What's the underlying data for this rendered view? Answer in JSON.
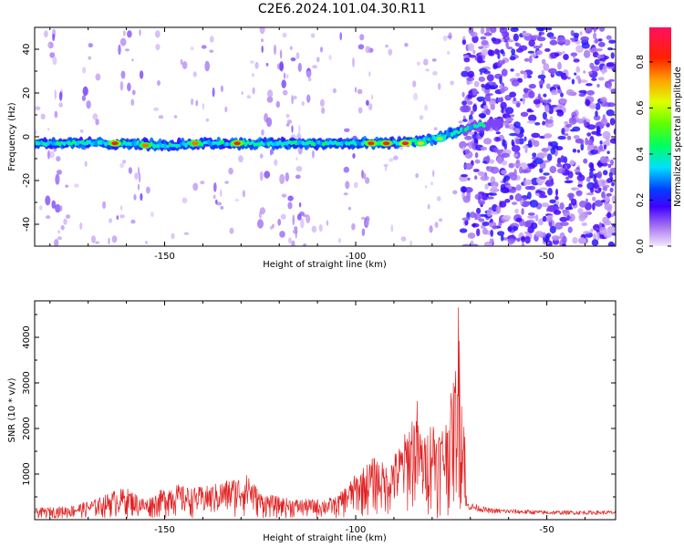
{
  "title": "C2E6.2024.101.04.30.R11",
  "colors": {
    "background": "#ffffff",
    "axes": "#000000",
    "snr_line": "#e02020"
  },
  "chart_data": [
    {
      "type": "heatmap",
      "xlabel": "Height of straight line (km)",
      "ylabel": "Frequency (Hz)",
      "xlim": [
        -184,
        -32
      ],
      "ylim": [
        -50,
        50
      ],
      "x_ticks": [
        -150,
        -100,
        -50
      ],
      "y_ticks": [
        -40,
        -20,
        0,
        20,
        40
      ],
      "grid": false,
      "colorscale": "rainbow",
      "colorbar": {
        "label": "Normalized spectral amplitude",
        "range": [
          0,
          0.95
        ],
        "ticks": [
          0.0,
          0.2,
          0.4,
          0.6,
          0.8
        ]
      },
      "ridge": [
        {
          "x": -184,
          "y": -3
        },
        {
          "x": -170,
          "y": -3
        },
        {
          "x": -160,
          "y": -3
        },
        {
          "x": -150,
          "y": -4
        },
        {
          "x": -140,
          "y": -3
        },
        {
          "x": -130,
          "y": -3
        },
        {
          "x": -120,
          "y": -3
        },
        {
          "x": -110,
          "y": -3
        },
        {
          "x": -100,
          "y": -3
        },
        {
          "x": -95,
          "y": -3
        },
        {
          "x": -90,
          "y": -3
        },
        {
          "x": -85,
          "y": -2
        },
        {
          "x": -80,
          "y": -1
        },
        {
          "x": -76,
          "y": 1
        },
        {
          "x": -72,
          "y": 3
        },
        {
          "x": -68,
          "y": 5
        },
        {
          "x": -62,
          "y": 6
        }
      ],
      "hotspots": [
        {
          "x": -163,
          "y": -3,
          "v": 0.9
        },
        {
          "x": -155,
          "y": -4,
          "v": 0.8
        },
        {
          "x": -142,
          "y": -3,
          "v": 0.8
        },
        {
          "x": -131,
          "y": -3,
          "v": 0.9
        },
        {
          "x": -96,
          "y": -3,
          "v": 0.9
        },
        {
          "x": -92,
          "y": -3,
          "v": 0.9
        },
        {
          "x": -87,
          "y": -3,
          "v": 0.95
        },
        {
          "x": -83,
          "y": -3,
          "v": 0.7
        },
        {
          "x": -78,
          "y": -1,
          "v": 0.6
        }
      ]
    },
    {
      "type": "line",
      "xlabel": "Height of straight line (km)",
      "ylabel": "SNR (10 * v/v)",
      "xlim": [
        -184,
        -32
      ],
      "ylim": [
        0,
        4800
      ],
      "x_ticks": [
        -150,
        -100,
        -50
      ],
      "y_ticks": [
        1000,
        2000,
        3000,
        4000
      ],
      "grid": false,
      "envelope": [
        {
          "x": -184,
          "y": 250
        },
        {
          "x": -175,
          "y": 300
        },
        {
          "x": -168,
          "y": 450
        },
        {
          "x": -163,
          "y": 650
        },
        {
          "x": -160,
          "y": 700
        },
        {
          "x": -155,
          "y": 450
        },
        {
          "x": -148,
          "y": 800
        },
        {
          "x": -143,
          "y": 700
        },
        {
          "x": -138,
          "y": 750
        },
        {
          "x": -133,
          "y": 900
        },
        {
          "x": -128,
          "y": 1000
        },
        {
          "x": -125,
          "y": 600
        },
        {
          "x": -120,
          "y": 500
        },
        {
          "x": -115,
          "y": 450
        },
        {
          "x": -110,
          "y": 450
        },
        {
          "x": -105,
          "y": 500
        },
        {
          "x": -100,
          "y": 1000
        },
        {
          "x": -95,
          "y": 1400
        },
        {
          "x": -92,
          "y": 1200
        },
        {
          "x": -88,
          "y": 1700
        },
        {
          "x": -85,
          "y": 2400
        },
        {
          "x": -82,
          "y": 1800
        },
        {
          "x": -80,
          "y": 2300
        },
        {
          "x": -78,
          "y": 2000
        },
        {
          "x": -76,
          "y": 2300
        },
        {
          "x": -74,
          "y": 3300
        },
        {
          "x": -73,
          "y": 4600
        },
        {
          "x": -72,
          "y": 2500
        },
        {
          "x": -71,
          "y": 400
        },
        {
          "x": -65,
          "y": 250
        },
        {
          "x": -50,
          "y": 200
        },
        {
          "x": -40,
          "y": 200
        },
        {
          "x": -32,
          "y": 200
        }
      ],
      "peaks": [
        {
          "x": -73,
          "y": 4800
        },
        {
          "x": -71.5,
          "y": 2750
        },
        {
          "x": -84,
          "y": 2650
        },
        {
          "x": -80,
          "y": 2450
        },
        {
          "x": -76,
          "y": 2600
        },
        {
          "x": -90,
          "y": 1600
        },
        {
          "x": -128,
          "y": 1100
        }
      ]
    }
  ]
}
